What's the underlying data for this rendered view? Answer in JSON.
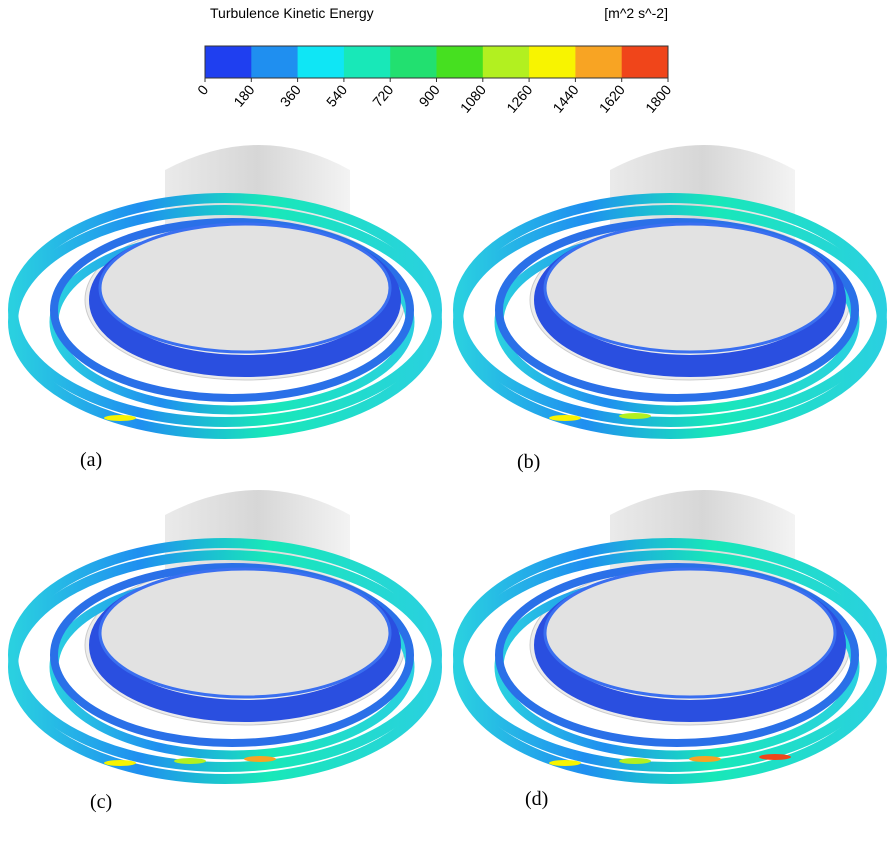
{
  "colorbar": {
    "title": "Turbulence Kinetic Energy",
    "unit": "[m^2 s^-2]",
    "ticks": [
      0,
      180,
      360,
      540,
      720,
      900,
      1080,
      1260,
      1440,
      1620,
      1800
    ],
    "colors": [
      "#1f3ff0",
      "#1f8ff0",
      "#0fe6f5",
      "#18e8b8",
      "#22e070",
      "#46e020",
      "#b2f020",
      "#f8f400",
      "#f8a423",
      "#f0451a"
    ]
  },
  "panels": [
    {
      "label": "(a)"
    },
    {
      "label": "(b)"
    },
    {
      "label": "(c)"
    },
    {
      "label": "(d)"
    }
  ]
}
